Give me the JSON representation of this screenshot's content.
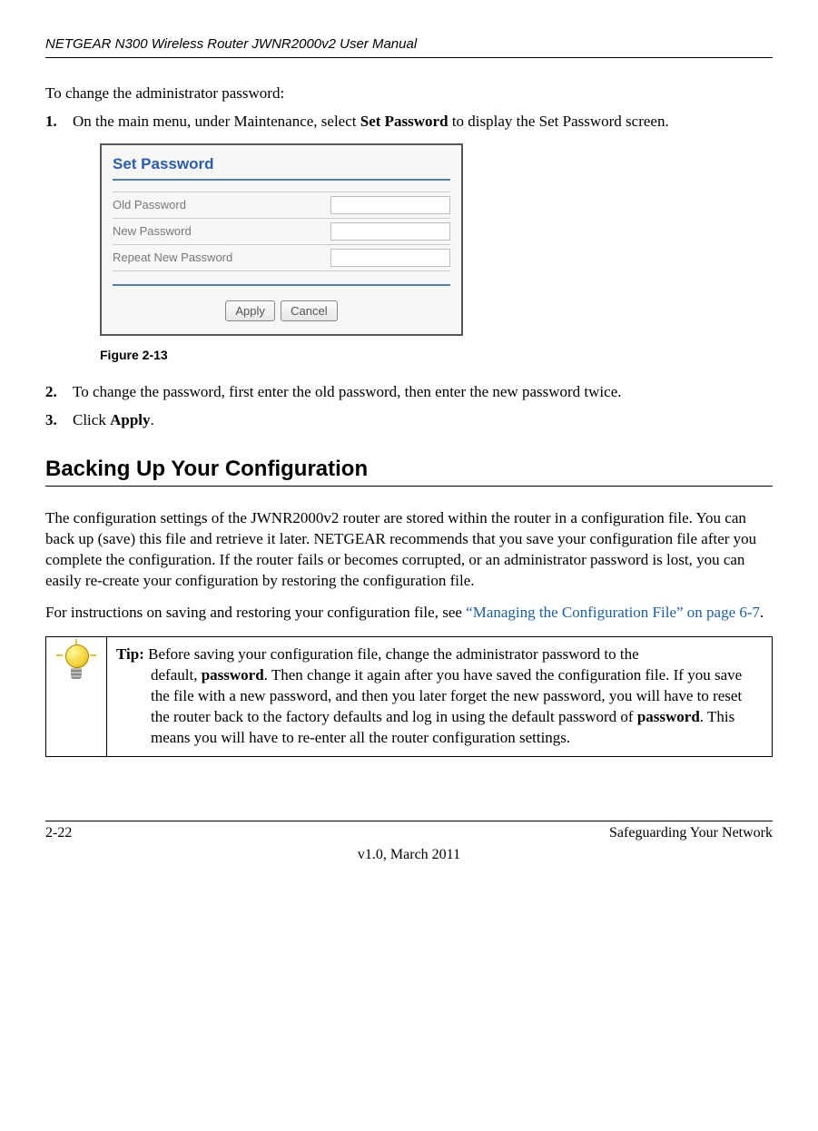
{
  "header": {
    "manual_title": "NETGEAR N300 Wireless Router JWNR2000v2 User Manual"
  },
  "intro": "To change the administrator password:",
  "steps": {
    "s1_num": "1.",
    "s1_pre": "On the main menu, under Maintenance, select ",
    "s1_bold": "Set Password",
    "s1_post": " to display the Set Password screen.",
    "s2_num": "2.",
    "s2_text": "To change the password, first enter the old password, then enter the new password twice.",
    "s3_num": "3.",
    "s3_pre": "Click ",
    "s3_bold": "Apply",
    "s3_post": "."
  },
  "figure": {
    "panel_title": "Set Password",
    "row1": "Old Password",
    "row2": "New Password",
    "row3": "Repeat New Password",
    "btn_apply": "Apply",
    "btn_cancel": "Cancel",
    "caption": "Figure 2-13"
  },
  "section_heading": "Backing Up Your Configuration",
  "para1": "The configuration settings of the JWNR2000v2 router are stored within the router in a configuration file. You can back up (save) this file and retrieve it later. NETGEAR recommends that you save your configuration file after you complete the configuration. If the router fails or becomes corrupted, or an administrator password is lost, you can easily re-create your configuration by restoring the configuration file.",
  "para2_pre": "For instructions on saving and restoring your configuration file, see ",
  "para2_link": "“Managing the Configuration File” on page 6-7",
  "para2_post": ".",
  "tip": {
    "label": "Tip: ",
    "line1": "Before saving your configuration file, change the administrator password to the ",
    "line2_pre": "default, ",
    "line2_bold1": "password",
    "line2_mid": ". Then change it again after you have saved the configuration file. If you save the file with a new password, and then you later forget the new password, you will have to reset the router back to the factory defaults and log in using the default password of ",
    "line2_bold2": "password",
    "line2_post": ". This means you will have to re-enter all the router configuration settings."
  },
  "footer": {
    "page": "2-22",
    "section": "Safeguarding Your Network",
    "version": "v1.0, March 2011"
  },
  "colors": {
    "link": "#1a5fa8",
    "panel_title": "#2a5db0",
    "panel_hr": "#4a7dc9"
  }
}
